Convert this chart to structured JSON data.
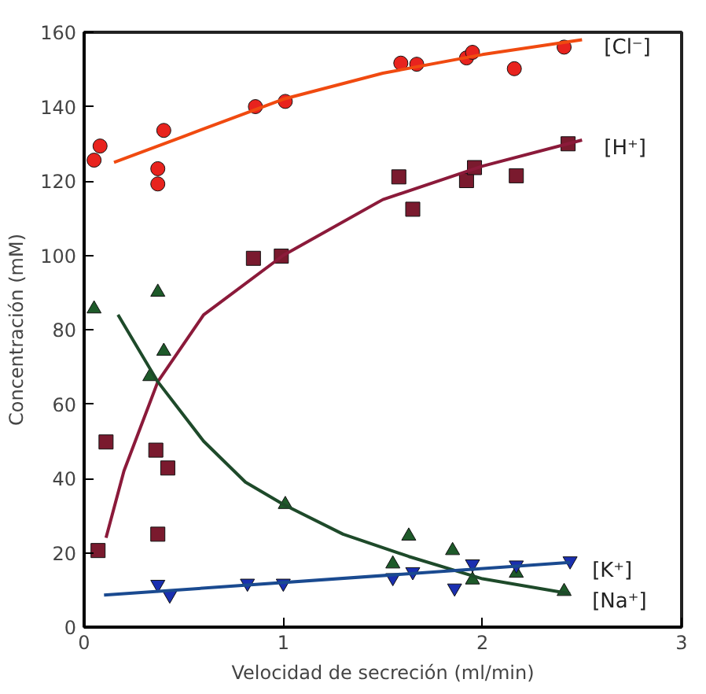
{
  "chart_data": {
    "type": "scatter",
    "xlabel": "Velocidad de secreción (ml/min)",
    "ylabel": "Concentración (mM)",
    "xlim": [
      0,
      3
    ],
    "ylim": [
      0,
      160
    ],
    "xticks": [
      0,
      1,
      2,
      3
    ],
    "yticks": [
      0,
      20,
      40,
      60,
      80,
      100,
      120,
      140,
      160
    ],
    "grid": false,
    "series": [
      {
        "marker": "circle",
        "color": "#e8231e",
        "x": [
          0.05,
          0.08,
          0.37,
          0.37,
          0.4,
          0.86,
          1.01,
          1.59,
          1.67,
          1.92,
          1.95,
          2.16,
          2.41
        ],
        "values": [
          125.6,
          129.4,
          123.3,
          119.2,
          133.6,
          140,
          141.4,
          151.7,
          151.4,
          153.1,
          154.6,
          150.2,
          156
        ]
      },
      {
        "type": "line",
        "name": "[Cl⁻]",
        "color": "#f04a10",
        "x": [
          0.15,
          0.5,
          1.0,
          1.5,
          2.0,
          2.5
        ],
        "values": [
          125,
          132,
          142,
          149,
          154,
          158
        ]
      },
      {
        "marker": "square",
        "color": "#7a1a2e",
        "x": [
          0.07,
          0.11,
          0.36,
          0.37,
          0.42,
          0.85,
          0.99,
          1.58,
          1.65,
          1.92,
          1.96,
          2.17,
          2.43
        ],
        "values": [
          20.6,
          49.8,
          47.6,
          25,
          42.8,
          99.2,
          99.8,
          121.1,
          112.4,
          120.1,
          123.6,
          121.4,
          130
        ]
      },
      {
        "type": "line",
        "name": "[H⁺]",
        "color": "#8b1a3a",
        "x": [
          0.11,
          0.2,
          0.37,
          0.6,
          1.0,
          1.5,
          2.0,
          2.5
        ],
        "values": [
          24,
          42,
          66,
          84,
          100,
          115,
          124,
          131
        ]
      },
      {
        "marker": "triangle",
        "color": "#1e5a2a",
        "x": [
          0.05,
          0.33,
          0.37,
          0.4,
          1.01,
          1.55,
          1.63,
          1.85,
          1.95,
          2.17,
          2.41
        ],
        "values": [
          85.6,
          67.4,
          90.1,
          74.2,
          33,
          17,
          24.5,
          20.6,
          12.7,
          14.5,
          9.6
        ]
      },
      {
        "type": "line",
        "name": "[Na⁺]",
        "color": "#1e4a2a",
        "x": [
          0.17,
          0.37,
          0.6,
          0.81,
          1.0,
          1.3,
          1.63,
          2.0,
          2.44
        ],
        "values": [
          84,
          66,
          50,
          39,
          33,
          25,
          19,
          13,
          9
        ]
      },
      {
        "marker": "triangle_down",
        "color": "#1a2fb0",
        "x": [
          0.37,
          0.43,
          0.82,
          1.0,
          1.55,
          1.65,
          1.86,
          1.95,
          2.17,
          2.44
        ],
        "values": [
          11.5,
          8.6,
          11.8,
          11.8,
          13.3,
          14.9,
          10.5,
          17,
          16.7,
          17.8
        ]
      },
      {
        "type": "line",
        "name": "[K⁺]",
        "color": "#1a4a90",
        "x": [
          0.1,
          2.44
        ],
        "values": [
          8.6,
          17.4
        ]
      }
    ]
  }
}
